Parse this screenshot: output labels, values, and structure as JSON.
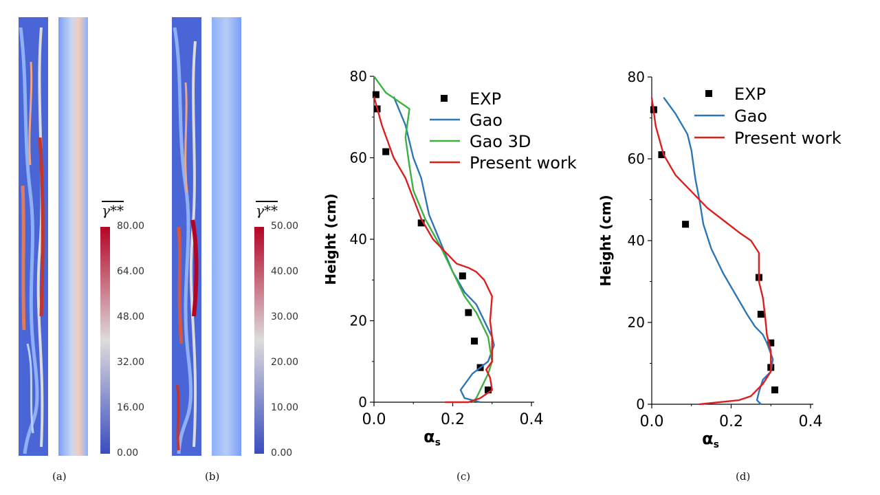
{
  "colors": {
    "cold": "#3b4cc0",
    "mid": "#dddcdc",
    "hot": "#b40426",
    "exp": "#000000",
    "gao": "#2e75b6",
    "gao3d": "#3cb043",
    "present": "#dc1e1e"
  },
  "panels": {
    "a": {
      "label": "(a)",
      "colorbar": {
        "title": "γ**",
        "ticks": [
          "80.00",
          "64.00",
          "48.00",
          "32.00",
          "16.00",
          "0.00"
        ]
      }
    },
    "b": {
      "label": "(b)",
      "colorbar": {
        "title": "γ**",
        "ticks": [
          "50.00",
          "40.00",
          "30.00",
          "20.00",
          "10.00",
          "0.00"
        ]
      }
    },
    "c": {
      "label": "(c)"
    },
    "d": {
      "label": "(d)"
    }
  },
  "chart_data": [
    {
      "id": "c",
      "type": "line",
      "xlabel": "αs",
      "ylabel": "Height (cm)",
      "xlim": [
        0.0,
        0.4
      ],
      "ylim": [
        0,
        80
      ],
      "xticks": [
        "0.0",
        "0.2",
        "0.4"
      ],
      "yticks": [
        "0",
        "20",
        "40",
        "60",
        "80"
      ],
      "legend": [
        "EXP",
        "Gao",
        "Gao 3D",
        "Present work"
      ],
      "series": [
        {
          "name": "EXP",
          "kind": "scatter",
          "x": [
            0.005,
            0.008,
            0.03,
            0.12,
            0.225,
            0.24,
            0.255,
            0.27,
            0.29
          ],
          "y": [
            75.5,
            72,
            61.5,
            44,
            31,
            22,
            15,
            8.5,
            3
          ]
        },
        {
          "name": "Gao",
          "kind": "line",
          "x": [
            0.05,
            0.08,
            0.1,
            0.12,
            0.14,
            0.17,
            0.2,
            0.23,
            0.26,
            0.28,
            0.3,
            0.305,
            0.29,
            0.25,
            0.22,
            0.23,
            0.27
          ],
          "y": [
            75,
            68,
            60,
            55,
            46,
            39,
            32,
            27,
            24,
            20,
            16,
            14,
            10,
            7,
            3,
            1,
            0
          ]
        },
        {
          "name": "Gao 3D",
          "kind": "line",
          "x": [
            0.0,
            0.03,
            0.06,
            0.09,
            0.08,
            0.09,
            0.1,
            0.13,
            0.17,
            0.2,
            0.23,
            0.26,
            0.29,
            0.3,
            0.29,
            0.27,
            0.26,
            0.25
          ],
          "y": [
            80,
            76,
            74,
            72,
            65,
            58,
            52,
            45,
            38,
            32,
            26,
            22,
            16,
            10,
            7,
            3,
            1,
            0
          ]
        },
        {
          "name": "Present work",
          "kind": "line",
          "x": [
            0.0,
            0.02,
            0.05,
            0.08,
            0.1,
            0.12,
            0.15,
            0.18,
            0.21,
            0.24,
            0.26,
            0.28,
            0.3,
            0.295,
            0.3,
            0.3,
            0.285,
            0.295,
            0.3,
            0.27,
            0.24,
            0.18
          ],
          "y": [
            75,
            68,
            60,
            55,
            50,
            45,
            40,
            37,
            34,
            33,
            32,
            30,
            26,
            20,
            16,
            10,
            8,
            6,
            3,
            1,
            0,
            0
          ]
        }
      ]
    },
    {
      "id": "d",
      "type": "line",
      "xlabel": "αs",
      "ylabel": "Height (cm)",
      "xlim": [
        0.0,
        0.4
      ],
      "ylim": [
        0,
        80
      ],
      "xticks": [
        "0.0",
        "0.2",
        "0.4"
      ],
      "yticks": [
        "0",
        "20",
        "40",
        "60",
        "80"
      ],
      "legend": [
        "EXP",
        "Gao",
        "Present work"
      ],
      "series": [
        {
          "name": "EXP",
          "kind": "scatter",
          "x": [
            0.005,
            0.025,
            0.085,
            0.27,
            0.275,
            0.3,
            0.3,
            0.31
          ],
          "y": [
            72,
            61,
            44,
            31,
            22,
            15,
            9,
            3.5
          ]
        },
        {
          "name": "Gao",
          "kind": "line",
          "x": [
            0.03,
            0.06,
            0.09,
            0.1,
            0.11,
            0.12,
            0.13,
            0.15,
            0.18,
            0.21,
            0.24,
            0.26,
            0.28,
            0.29,
            0.305,
            0.3,
            0.28,
            0.27,
            0.265,
            0.275
          ],
          "y": [
            75,
            71,
            66,
            62,
            55,
            50,
            44,
            38,
            32,
            27,
            22,
            19,
            17,
            15,
            11,
            8,
            6,
            3,
            1,
            0
          ]
        },
        {
          "name": "Present work",
          "kind": "line",
          "x": [
            0.0,
            0.01,
            0.03,
            0.06,
            0.1,
            0.14,
            0.18,
            0.22,
            0.25,
            0.27,
            0.27,
            0.28,
            0.285,
            0.29,
            0.3,
            0.3,
            0.28,
            0.25,
            0.22,
            0.12
          ],
          "y": [
            75,
            68,
            61,
            56,
            52,
            48,
            45,
            42,
            40,
            37,
            30,
            26,
            22,
            17,
            13,
            8,
            5,
            2,
            1,
            0
          ]
        }
      ]
    }
  ]
}
